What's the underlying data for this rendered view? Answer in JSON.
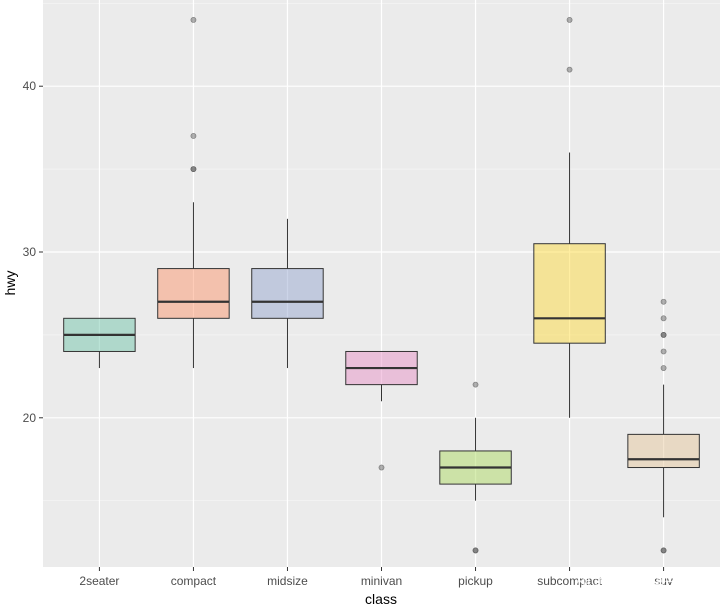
{
  "chart_data": {
    "type": "boxplot",
    "xlabel": "class",
    "ylabel": "hwy",
    "ylim": [
      11,
      45.2
    ],
    "yticks": [
      20,
      30,
      40
    ],
    "grid": true,
    "categories": [
      "2seater",
      "compact",
      "midsize",
      "minivan",
      "pickup",
      "subcompact",
      "suv"
    ],
    "boxes": [
      {
        "category": "2seater",
        "whisker_low": 23,
        "q1": 24,
        "median": 25,
        "q3": 26,
        "whisker_high": 26,
        "outliers": [],
        "color": "#66c2a5"
      },
      {
        "category": "compact",
        "whisker_low": 23,
        "q1": 26,
        "median": 27,
        "q3": 29,
        "whisker_high": 33,
        "outliers": [
          35,
          35,
          37,
          44
        ],
        "color": "#fc8d62"
      },
      {
        "category": "midsize",
        "whisker_low": 23,
        "q1": 26,
        "median": 27,
        "q3": 29,
        "whisker_high": 32,
        "outliers": [],
        "color": "#8da0cb"
      },
      {
        "category": "minivan",
        "whisker_low": 21,
        "q1": 22,
        "median": 23,
        "q3": 24,
        "whisker_high": 24,
        "outliers": [
          17
        ],
        "color": "#e78ac3"
      },
      {
        "category": "pickup",
        "whisker_low": 15,
        "q1": 16,
        "median": 17,
        "q3": 18,
        "whisker_high": 20,
        "outliers": [
          12,
          12,
          22
        ],
        "color": "#a6d854"
      },
      {
        "category": "subcompact",
        "whisker_low": 20,
        "q1": 24.5,
        "median": 26,
        "q3": 30.5,
        "whisker_high": 36,
        "outliers": [
          41,
          44
        ],
        "color": "#ffd92f"
      },
      {
        "category": "suv",
        "whisker_low": 14,
        "q1": 17,
        "median": 17.5,
        "q3": 19,
        "whisker_high": 22,
        "outliers": [
          12,
          12,
          23,
          24,
          25,
          25,
          26,
          27
        ],
        "color": "#e5c494"
      }
    ]
  },
  "watermark": {
    "text": "知乎 @路遥马亡"
  }
}
